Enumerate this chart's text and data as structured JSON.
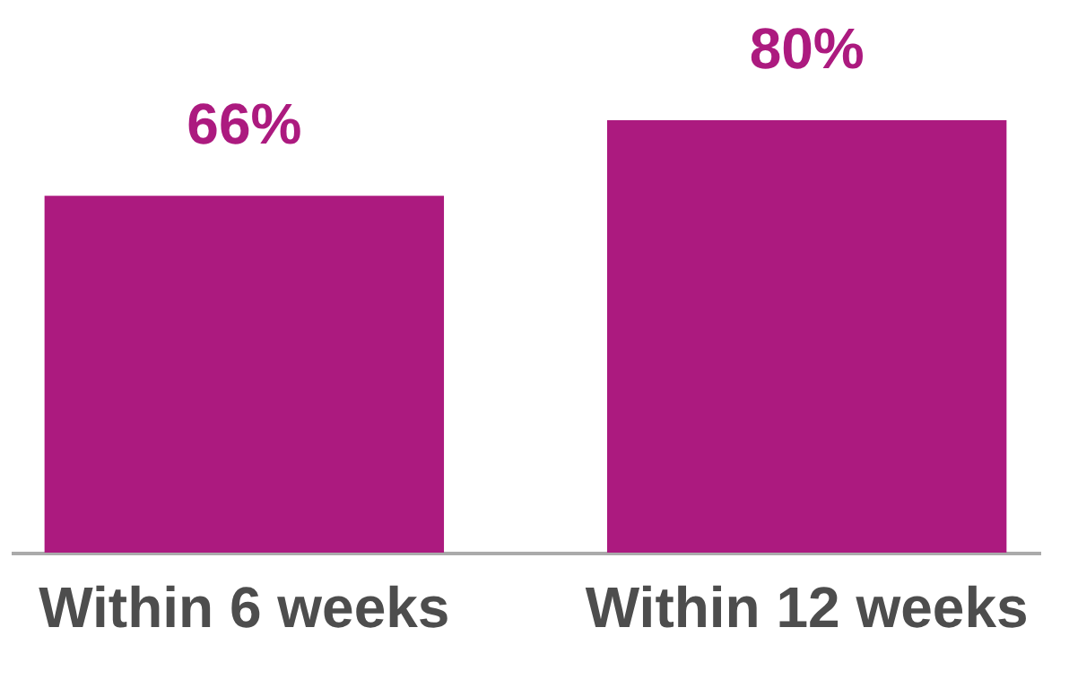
{
  "chart_data": {
    "type": "bar",
    "categories": [
      "Within 6 weeks",
      "Within 12 weeks"
    ],
    "values": [
      66,
      80
    ],
    "color": "#ac1a7f",
    "value_labels": [
      "66%",
      "80%"
    ]
  }
}
